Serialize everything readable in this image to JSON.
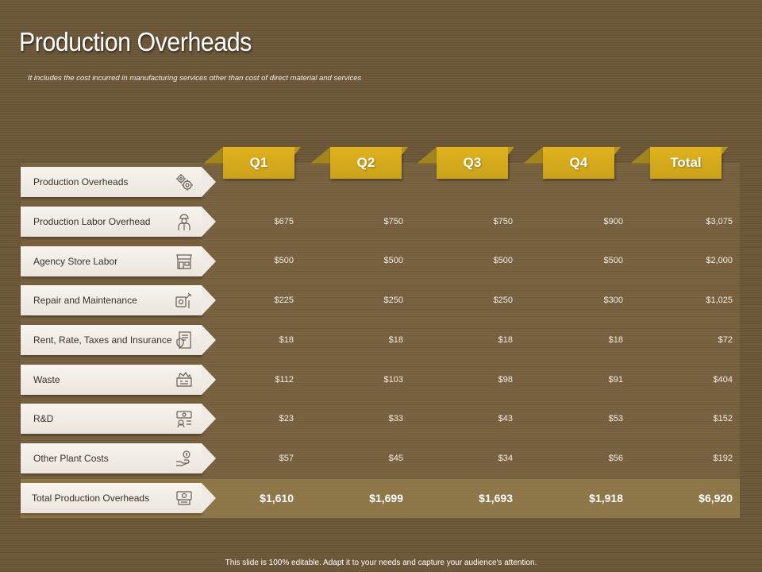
{
  "slide": {
    "title": "Production Overheads",
    "subtitle": "It includes the cost incurred in manufacturing services other than cost of direct material and services",
    "footer": "This slide is 100% editable. Adapt it to your needs and capture your audience's attention."
  },
  "table": {
    "columns": [
      "Q1",
      "Q2",
      "Q3",
      "Q4",
      "Total"
    ],
    "rows": [
      {
        "label": "Production Overheads",
        "icon": "gears-icon",
        "values": []
      },
      {
        "label": "Production Labor Overhead",
        "icon": "worker-icon",
        "values": [
          "$675",
          "$750",
          "$750",
          "$900",
          "$3,075"
        ]
      },
      {
        "label": "Agency Store Labor",
        "icon": "store-icon",
        "values": [
          "$500",
          "$500",
          "$500",
          "$500",
          "$2,000"
        ]
      },
      {
        "label": "Repair and Maintenance",
        "icon": "wrench-icon",
        "values": [
          "$225",
          "$250",
          "$250",
          "$300",
          "$1,025"
        ]
      },
      {
        "label": "Rent, Rate, Taxes and Insurance",
        "icon": "document-icon",
        "values": [
          "$18",
          "$18",
          "$18",
          "$18",
          "$72"
        ]
      },
      {
        "label": "Waste",
        "icon": "waste-icon",
        "values": [
          "$112",
          "$103",
          "$98",
          "$91",
          "$404"
        ]
      },
      {
        "label": "R&D",
        "icon": "research-icon",
        "values": [
          "$23",
          "$33",
          "$43",
          "$53",
          "$152"
        ]
      },
      {
        "label": "Other Plant Costs",
        "icon": "money-hand-icon",
        "values": [
          "$57",
          "$45",
          "$34",
          "$56",
          "$192"
        ]
      },
      {
        "label": "Total Production Overheads",
        "icon": "cash-register-icon",
        "values": [
          "$1,610",
          "$1,699",
          "$1,693",
          "$1,918",
          "$6,920"
        ],
        "total": true
      }
    ]
  },
  "colors": {
    "background": "#6b5637",
    "header_tab": "#d6aa1c",
    "row_label": "#f3efe9",
    "text_light": "#f2ece3"
  }
}
